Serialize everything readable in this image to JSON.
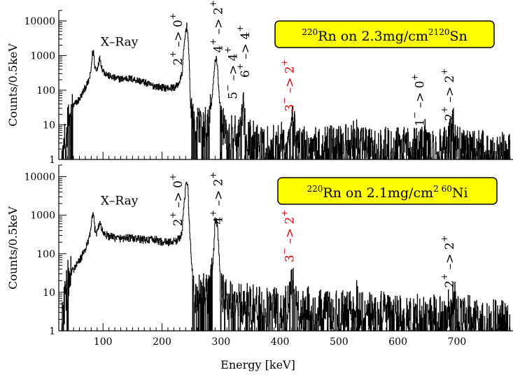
{
  "chart_data": [
    {
      "type": "line",
      "panel": "top",
      "title_box": {
        "nucleus_mass": "220",
        "nucleus": "Rn",
        "middle": " on 2.3mg/cm",
        "exp": "2",
        "target_mass": "120",
        "target": "Sn",
        "fill": "#ffff00"
      },
      "ylabel": "Counts/0.5keV",
      "xlim": [
        25,
        795
      ],
      "ylim": [
        1,
        20000
      ],
      "y_scale": "log",
      "y_ticks": [
        {
          "v": 1,
          "label": "1"
        },
        {
          "v": 10,
          "label": "10"
        },
        {
          "v": 100,
          "label": "100"
        },
        {
          "v": 1000,
          "label": "1000"
        },
        {
          "v": 10000,
          "label": "10000"
        }
      ],
      "spectrum": {
        "color": "#000000",
        "points": [
          [
            30,
            1.5
          ],
          [
            35,
            3
          ],
          [
            40,
            10
          ],
          [
            45,
            22
          ],
          [
            50,
            35
          ],
          [
            55,
            45
          ],
          [
            60,
            55
          ],
          [
            65,
            80
          ],
          [
            70,
            120
          ],
          [
            75,
            170
          ],
          [
            79,
            300
          ],
          [
            82,
            1100
          ],
          [
            84,
            1300
          ],
          [
            86,
            500
          ],
          [
            89,
            350
          ],
          [
            92,
            600
          ],
          [
            95,
            850
          ],
          [
            98,
            450
          ],
          [
            102,
            330
          ],
          [
            110,
            260
          ],
          [
            120,
            220
          ],
          [
            130,
            210
          ],
          [
            140,
            220
          ],
          [
            150,
            210
          ],
          [
            160,
            190
          ],
          [
            170,
            170
          ],
          [
            180,
            140
          ],
          [
            190,
            130
          ],
          [
            200,
            120
          ],
          [
            210,
            115
          ],
          [
            220,
            120
          ],
          [
            225,
            130
          ],
          [
            230,
            180
          ],
          [
            234,
            300
          ],
          [
            237,
            1500
          ],
          [
            240,
            5000
          ],
          [
            242,
            7000
          ],
          [
            244,
            4000
          ],
          [
            246,
            600
          ],
          [
            249,
            20
          ],
          [
            252,
            12
          ],
          [
            255,
            9
          ],
          [
            260,
            12
          ],
          [
            265,
            10
          ],
          [
            270,
            8
          ],
          [
            275,
            10
          ],
          [
            280,
            15
          ],
          [
            285,
            60
          ],
          [
            288,
            250
          ],
          [
            290,
            700
          ],
          [
            292,
            900
          ],
          [
            294,
            500
          ],
          [
            297,
            60
          ],
          [
            300,
            12
          ],
          [
            305,
            8
          ],
          [
            310,
            5
          ],
          [
            315,
            4
          ],
          [
            320,
            7
          ],
          [
            325,
            5
          ],
          [
            330,
            4
          ],
          [
            335,
            10
          ],
          [
            338,
            25
          ],
          [
            340,
            12
          ],
          [
            345,
            4
          ],
          [
            350,
            5
          ],
          [
            360,
            3
          ],
          [
            370,
            4
          ],
          [
            380,
            3
          ],
          [
            390,
            3
          ],
          [
            400,
            3
          ],
          [
            410,
            5
          ],
          [
            415,
            7
          ],
          [
            418,
            12
          ],
          [
            421,
            18
          ],
          [
            424,
            8
          ],
          [
            430,
            3
          ],
          [
            440,
            3
          ],
          [
            450,
            3
          ],
          [
            460,
            3
          ],
          [
            470,
            2.5
          ],
          [
            480,
            3
          ],
          [
            490,
            2.5
          ],
          [
            500,
            3
          ],
          [
            510,
            3
          ],
          [
            520,
            2.5
          ],
          [
            530,
            6
          ],
          [
            535,
            2.5
          ],
          [
            540,
            2.5
          ],
          [
            550,
            2.5
          ],
          [
            560,
            2.5
          ],
          [
            570,
            2.5
          ],
          [
            580,
            2.5
          ],
          [
            590,
            2.5
          ],
          [
            600,
            2.5
          ],
          [
            610,
            2.5
          ],
          [
            620,
            2.5
          ],
          [
            630,
            2.5
          ],
          [
            640,
            3
          ],
          [
            645,
            5
          ],
          [
            650,
            3
          ],
          [
            660,
            2.5
          ],
          [
            670,
            2.5
          ],
          [
            680,
            2.5
          ],
          [
            685,
            3
          ],
          [
            690,
            6
          ],
          [
            693,
            10
          ],
          [
            696,
            7
          ],
          [
            700,
            3
          ],
          [
            710,
            2.5
          ],
          [
            720,
            2.5
          ],
          [
            730,
            2
          ],
          [
            740,
            2.5
          ],
          [
            750,
            2
          ],
          [
            760,
            2
          ],
          [
            770,
            2
          ],
          [
            780,
            2
          ],
          [
            790,
            1.5
          ]
        ]
      },
      "annotations": [
        {
          "text": "X–Ray",
          "x": 96,
          "y": 1900,
          "rot": 0,
          "color": "#000000"
        },
        {
          "lo": "2",
          "lo_sign": "+",
          "arrow": "–>",
          "hi": "0",
          "hi_sign": "+",
          "x": 228,
          "y": 520,
          "rot": -90,
          "color": "#000000"
        },
        {
          "lo": "4",
          "lo_sign": "+",
          "arrow": "–>",
          "hi": "2",
          "hi_sign": "+",
          "x": 296,
          "y": 1200,
          "rot": -90,
          "color": "#000000"
        },
        {
          "lo": "5",
          "lo_sign": "−",
          "arrow": "–>",
          "hi": "4",
          "hi_sign": "+",
          "x": 321,
          "y": 55,
          "rot": -90,
          "color": "#000000"
        },
        {
          "lo": "6",
          "lo_sign": "+",
          "arrow": "–>",
          "hi": "4",
          "hi_sign": "+",
          "x": 342,
          "y": 230,
          "rot": -90,
          "color": "#000000"
        },
        {
          "lo": "3",
          "lo_sign": "−",
          "arrow": "–>",
          "hi": "2",
          "hi_sign": "+",
          "x": 417,
          "y": 24,
          "rot": -90,
          "color": "#e00000"
        },
        {
          "lo": "1",
          "lo_sign": "−",
          "arrow": "–>",
          "hi": "0",
          "hi_sign": "+",
          "x": 638,
          "y": 9,
          "rot": -90,
          "color": "#000000"
        },
        {
          "lo": "2",
          "lo_sign": "+",
          "arrow": "–>",
          "hi": "2",
          "hi_sign": "+",
          "x": 688,
          "y": 13,
          "rot": -90,
          "color": "#000000"
        }
      ]
    },
    {
      "type": "line",
      "panel": "bottom",
      "title_box": {
        "nucleus_mass": "220",
        "nucleus": "Rn",
        "middle": " on 2.1mg/cm",
        "exp": "2",
        "target_mass": " 60",
        "target": "Ni",
        "fill": "#ffff00"
      },
      "ylabel": "Counts/0.5keV",
      "xlabel": "Energy [keV]",
      "xlim": [
        25,
        795
      ],
      "ylim": [
        1,
        20000
      ],
      "y_scale": "log",
      "y_ticks": [
        {
          "v": 1,
          "label": "1"
        },
        {
          "v": 10,
          "label": "10"
        },
        {
          "v": 100,
          "label": "100"
        },
        {
          "v": 1000,
          "label": "1000"
        },
        {
          "v": 10000,
          "label": "10000"
        }
      ],
      "x_ticks": [
        {
          "v": 100,
          "label": "100"
        },
        {
          "v": 200,
          "label": "200"
        },
        {
          "v": 300,
          "label": "300"
        },
        {
          "v": 400,
          "label": "400"
        },
        {
          "v": 500,
          "label": "500"
        },
        {
          "v": 600,
          "label": "600"
        },
        {
          "v": 700,
          "label": "700"
        }
      ],
      "spectrum": {
        "color": "#000000",
        "points": [
          [
            30,
            1.5
          ],
          [
            33,
            3
          ],
          [
            37,
            10
          ],
          [
            40,
            20
          ],
          [
            45,
            30
          ],
          [
            50,
            40
          ],
          [
            55,
            50
          ],
          [
            60,
            65
          ],
          [
            65,
            90
          ],
          [
            70,
            130
          ],
          [
            75,
            200
          ],
          [
            79,
            400
          ],
          [
            82,
            900
          ],
          [
            84,
            1000
          ],
          [
            86,
            450
          ],
          [
            89,
            360
          ],
          [
            92,
            500
          ],
          [
            95,
            650
          ],
          [
            98,
            420
          ],
          [
            102,
            330
          ],
          [
            110,
            280
          ],
          [
            120,
            260
          ],
          [
            130,
            250
          ],
          [
            140,
            260
          ],
          [
            150,
            250
          ],
          [
            160,
            240
          ],
          [
            170,
            230
          ],
          [
            180,
            230
          ],
          [
            190,
            230
          ],
          [
            200,
            200
          ],
          [
            210,
            200
          ],
          [
            220,
            210
          ],
          [
            225,
            220
          ],
          [
            230,
            260
          ],
          [
            234,
            400
          ],
          [
            237,
            1500
          ],
          [
            240,
            5000
          ],
          [
            242,
            7500
          ],
          [
            244,
            5000
          ],
          [
            246,
            800
          ],
          [
            250,
            60
          ],
          [
            254,
            12
          ],
          [
            258,
            6
          ],
          [
            262,
            8
          ],
          [
            266,
            10
          ],
          [
            270,
            9
          ],
          [
            275,
            8
          ],
          [
            280,
            10
          ],
          [
            285,
            30
          ],
          [
            288,
            150
          ],
          [
            290,
            700
          ],
          [
            292,
            800
          ],
          [
            294,
            500
          ],
          [
            297,
            80
          ],
          [
            300,
            10
          ],
          [
            305,
            8
          ],
          [
            310,
            6
          ],
          [
            320,
            6
          ],
          [
            330,
            5
          ],
          [
            340,
            5
          ],
          [
            350,
            5
          ],
          [
            360,
            5
          ],
          [
            370,
            4
          ],
          [
            380,
            4
          ],
          [
            390,
            4
          ],
          [
            400,
            4
          ],
          [
            410,
            5
          ],
          [
            415,
            6
          ],
          [
            418,
            12
          ],
          [
            421,
            20
          ],
          [
            424,
            8
          ],
          [
            430,
            4
          ],
          [
            440,
            4
          ],
          [
            450,
            4
          ],
          [
            460,
            4
          ],
          [
            470,
            3.5
          ],
          [
            480,
            4
          ],
          [
            490,
            3.5
          ],
          [
            500,
            3.5
          ],
          [
            510,
            3.5
          ],
          [
            520,
            3
          ],
          [
            530,
            6
          ],
          [
            535,
            3
          ],
          [
            540,
            3
          ],
          [
            550,
            3
          ],
          [
            560,
            3
          ],
          [
            570,
            3
          ],
          [
            580,
            3
          ],
          [
            590,
            2.5
          ],
          [
            600,
            3
          ],
          [
            610,
            2.5
          ],
          [
            620,
            2.5
          ],
          [
            630,
            2.5
          ],
          [
            640,
            2.5
          ],
          [
            650,
            2.5
          ],
          [
            660,
            2.5
          ],
          [
            670,
            2.5
          ],
          [
            680,
            2.5
          ],
          [
            690,
            5
          ],
          [
            694,
            8
          ],
          [
            697,
            6
          ],
          [
            700,
            3
          ],
          [
            710,
            2.5
          ],
          [
            720,
            2.5
          ],
          [
            730,
            2
          ],
          [
            740,
            2
          ],
          [
            750,
            2
          ],
          [
            760,
            2
          ],
          [
            770,
            2
          ],
          [
            780,
            2
          ],
          [
            790,
            1.5
          ]
        ]
      },
      "annotations": [
        {
          "text": "X–Ray",
          "x": 96,
          "y": 1900,
          "rot": 0,
          "color": "#000000"
        },
        {
          "lo": "2",
          "lo_sign": "+",
          "arrow": "–>",
          "hi": "0",
          "hi_sign": "+",
          "x": 228,
          "y": 520,
          "rot": -90,
          "color": "#000000"
        },
        {
          "lo": "4",
          "lo_sign": "+",
          "arrow": "–>",
          "hi": "2",
          "hi_sign": "+",
          "x": 296,
          "y": 580,
          "rot": -90,
          "color": "#000000"
        },
        {
          "lo": "3",
          "lo_sign": "−",
          "arrow": "–>",
          "hi": "2",
          "hi_sign": "+",
          "x": 417,
          "y": 60,
          "rot": -90,
          "color": "#e00000"
        },
        {
          "lo": "2",
          "lo_sign": "+",
          "arrow": "–>",
          "hi": "2",
          "hi_sign": "+",
          "x": 688,
          "y": 13,
          "rot": -90,
          "color": "#000000"
        }
      ]
    }
  ]
}
